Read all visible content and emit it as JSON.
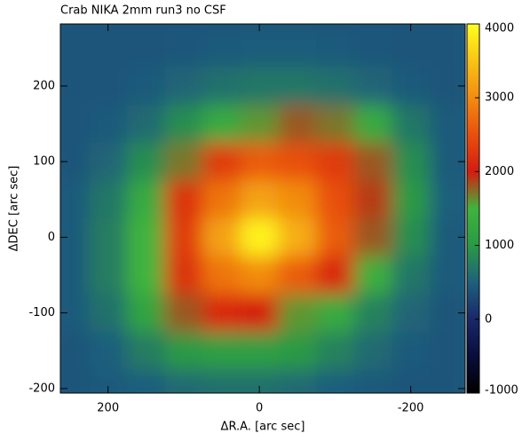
{
  "chart_data": {
    "type": "heatmap",
    "title": "Crab NIKA 2mm run3 no CSF",
    "xlabel": "ΔR.A. [arc sec]",
    "ylabel": "ΔDEC [arc sec]",
    "xlim": [
      263,
      -272
    ],
    "xticks": [
      200,
      0,
      -200
    ],
    "ylim": [
      -206,
      282
    ],
    "yticks": [
      -200,
      -100,
      0,
      100,
      200
    ],
    "zlim": [
      -1000,
      4000
    ],
    "zticks": [
      -1000,
      0,
      1000,
      2000,
      3000,
      4000
    ],
    "colorscale": [
      {
        "value": -1000,
        "color": "#000000"
      },
      {
        "value": -500,
        "color": "#0a0d3a"
      },
      {
        "value": 0,
        "color": "#18286a"
      },
      {
        "value": 500,
        "color": "#1f5f7d"
      },
      {
        "value": 1000,
        "color": "#2a9a44"
      },
      {
        "value": 1500,
        "color": "#40b43c"
      },
      {
        "value": 2000,
        "color": "#d41c10"
      },
      {
        "value": 2500,
        "color": "#e8500e"
      },
      {
        "value": 3000,
        "color": "#f28c10"
      },
      {
        "value": 3500,
        "color": "#f8c414"
      },
      {
        "value": 4000,
        "color": "#ffff20"
      }
    ],
    "x": [
      250,
      200,
      150,
      100,
      50,
      0,
      -50,
      -100,
      -150,
      -200,
      -250
    ],
    "y": [
      300,
      250,
      200,
      150,
      100,
      50,
      0,
      -50,
      -100,
      -150,
      -200
    ],
    "z": [
      [
        400,
        400,
        400,
        400,
        400,
        400,
        400,
        400,
        400,
        400,
        400
      ],
      [
        400,
        400,
        400,
        420,
        450,
        460,
        460,
        450,
        420,
        400,
        400
      ],
      [
        400,
        400,
        450,
        550,
        650,
        700,
        700,
        650,
        550,
        450,
        400
      ],
      [
        400,
        450,
        600,
        900,
        1300,
        1600,
        1800,
        1700,
        1300,
        700,
        450
      ],
      [
        400,
        550,
        900,
        1700,
        2300,
        2600,
        2500,
        2300,
        1800,
        900,
        450
      ],
      [
        450,
        700,
        1300,
        2200,
        2800,
        3200,
        3000,
        2500,
        1900,
        1000,
        500
      ],
      [
        450,
        750,
        1500,
        2300,
        3200,
        3900,
        3300,
        2600,
        1800,
        900,
        450
      ],
      [
        450,
        750,
        1500,
        2200,
        2800,
        3000,
        2600,
        2100,
        1400,
        700,
        450
      ],
      [
        450,
        650,
        1200,
        1800,
        2100,
        2000,
        1600,
        1300,
        800,
        550,
        400
      ],
      [
        400,
        500,
        750,
        1000,
        1100,
        1100,
        1000,
        800,
        600,
        450,
        400
      ],
      [
        400,
        450,
        500,
        600,
        650,
        650,
        600,
        500,
        450,
        400,
        400
      ]
    ]
  }
}
